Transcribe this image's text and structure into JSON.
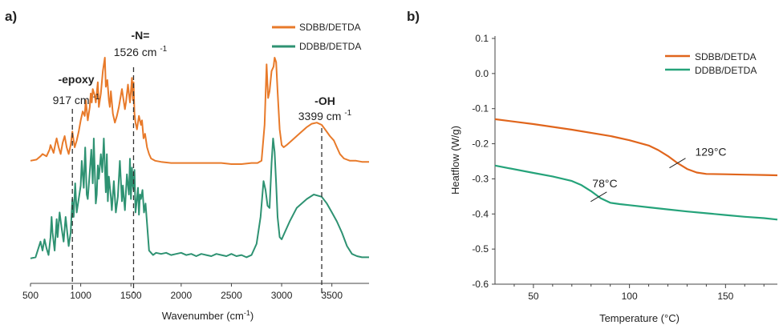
{
  "panels": {
    "a": "a)",
    "b": "b)"
  },
  "chart_data": [
    {
      "type": "line",
      "panel": "a)",
      "xlabel": "Wavenumber (cm⁻¹)",
      "ylabel": "",
      "xlim": [
        500,
        3870
      ],
      "x_ticks": [
        500,
        1000,
        1500,
        2000,
        2500,
        3000,
        3500
      ],
      "grid": false,
      "legend_position": "top-right",
      "series": [
        {
          "name": "SDBB/DETDA",
          "color": "#e87a2a",
          "x": [
            500,
            560,
            600,
            620,
            660,
            690,
            700,
            730,
            750,
            760,
            780,
            800,
            820,
            840,
            860,
            880,
            900,
            917,
            930,
            940,
            960,
            980,
            1000,
            1020,
            1040,
            1050,
            1070,
            1090,
            1100,
            1110,
            1120,
            1140,
            1150,
            1170,
            1180,
            1200,
            1220,
            1240,
            1250,
            1265,
            1280,
            1290,
            1300,
            1320,
            1340,
            1360,
            1380,
            1410,
            1420,
            1440,
            1450,
            1470,
            1480,
            1490,
            1500,
            1510,
            1520,
            1526,
            1535,
            1545,
            1560,
            1580,
            1600,
            1610,
            1625,
            1640,
            1660,
            1680,
            1700,
            1740,
            1800,
            1900,
            2000,
            2100,
            2200,
            2300,
            2400,
            2500,
            2600,
            2700,
            2760,
            2800,
            2830,
            2850,
            2865,
            2880,
            2900,
            2920,
            2930,
            2945,
            2960,
            2980,
            3000,
            3020,
            3050,
            3100,
            3150,
            3200,
            3250,
            3300,
            3350,
            3399,
            3440,
            3480,
            3520,
            3550,
            3580,
            3620,
            3680,
            3740,
            3800,
            3870
          ],
          "values": [
            8,
            9,
            12,
            14,
            12,
            18,
            22,
            15,
            24,
            28,
            20,
            14,
            24,
            30,
            20,
            14,
            22,
            34,
            26,
            20,
            26,
            34,
            44,
            52,
            48,
            62,
            44,
            56,
            68,
            60,
            72,
            66,
            60,
            78,
            56,
            68,
            88,
            100,
            74,
            80,
            62,
            56,
            70,
            50,
            42,
            48,
            56,
            72,
            66,
            54,
            60,
            76,
            68,
            60,
            70,
            82,
            62,
            78,
            50,
            42,
            36,
            48,
            40,
            44,
            28,
            32,
            20,
            14,
            10,
            8,
            7,
            6,
            6,
            6,
            6,
            6,
            6,
            5,
            5,
            6,
            6,
            8,
            40,
            94,
            64,
            70,
            88,
            92,
            100,
            96,
            70,
            36,
            22,
            20,
            22,
            26,
            30,
            34,
            38,
            41,
            42,
            40,
            35,
            30,
            26,
            20,
            14,
            10,
            8,
            8,
            7,
            7
          ]
        },
        {
          "name": "DDBB/DETDA",
          "color": "#2e9272",
          "x": [
            500,
            550,
            600,
            620,
            640,
            660,
            680,
            700,
            710,
            720,
            740,
            760,
            770,
            790,
            810,
            830,
            850,
            880,
            900,
            917,
            930,
            945,
            960,
            980,
            1000,
            1010,
            1030,
            1045,
            1060,
            1070,
            1090,
            1105,
            1120,
            1130,
            1150,
            1160,
            1170,
            1180,
            1200,
            1215,
            1230,
            1250,
            1260,
            1270,
            1280,
            1300,
            1310,
            1330,
            1350,
            1370,
            1390,
            1410,
            1420,
            1440,
            1460,
            1480,
            1490,
            1500,
            1510,
            1520,
            1526,
            1535,
            1545,
            1560,
            1570,
            1580,
            1590,
            1600,
            1615,
            1630,
            1645,
            1660,
            1680,
            1700,
            1720,
            1750,
            1800,
            1850,
            1900,
            1950,
            2000,
            2050,
            2100,
            2150,
            2200,
            2250,
            2300,
            2350,
            2400,
            2450,
            2500,
            2550,
            2600,
            2650,
            2700,
            2750,
            2790,
            2820,
            2840,
            2860,
            2880,
            2900,
            2915,
            2930,
            2945,
            2960,
            2980,
            3000,
            3030,
            3080,
            3150,
            3250,
            3320,
            3399,
            3450,
            3500,
            3550,
            3600,
            3650,
            3700,
            3750,
            3800,
            3870
          ],
          "values": [
            3,
            4,
            18,
            10,
            20,
            12,
            6,
            22,
            40,
            26,
            10,
            38,
            22,
            44,
            30,
            18,
            40,
            14,
            26,
            56,
            40,
            70,
            44,
            56,
            68,
            90,
            66,
            102,
            60,
            56,
            80,
            100,
            70,
            110,
            52,
            60,
            86,
            74,
            96,
            80,
            110,
            62,
            96,
            54,
            76,
            58,
            46,
            72,
            44,
            58,
            90,
            54,
            68,
            46,
            78,
            60,
            92,
            56,
            84,
            68,
            64,
            82,
            44,
            56,
            66,
            42,
            60,
            56,
            64,
            44,
            52,
            34,
            10,
            8,
            6,
            8,
            7,
            8,
            6,
            7,
            8,
            6,
            7,
            5,
            7,
            6,
            5,
            7,
            6,
            5,
            7,
            5,
            6,
            4,
            6,
            16,
            40,
            72,
            64,
            50,
            48,
            88,
            110,
            98,
            70,
            40,
            22,
            20,
            26,
            36,
            48,
            56,
            60,
            58,
            52,
            44,
            36,
            26,
            14,
            7,
            5,
            4,
            4
          ]
        }
      ],
      "annotations": [
        {
          "label": "-epoxy",
          "sublabel": "917 cm -1",
          "x": 917
        },
        {
          "label": "-N=",
          "sublabel": "1526 cm -1",
          "x": 1526
        },
        {
          "label": "-OH",
          "sublabel": "3399 cm -1",
          "x": 3399
        }
      ]
    },
    {
      "type": "line",
      "panel": "b)",
      "xlabel": "Temperature (°C)",
      "ylabel": "Heatflow (W/g)",
      "xlim": [
        30,
        177
      ],
      "ylim": [
        -0.6,
        0.1
      ],
      "x_ticks": [
        50,
        100,
        150
      ],
      "y_ticks": [
        0.1,
        0.0,
        -0.1,
        -0.2,
        -0.3,
        -0.4,
        -0.5,
        -0.6
      ],
      "y_tick_labels": [
        "0.1",
        "0.0",
        "-0.1",
        "-0.2",
        "-0.3",
        "-0.4",
        "-0.5",
        "-0.6"
      ],
      "grid": false,
      "legend_position": "top-right",
      "series": [
        {
          "name": "SDBB/DETDA",
          "color": "#e0651c",
          "x": [
            30,
            50,
            70,
            90,
            100,
            110,
            115,
            120,
            125,
            130,
            135,
            140,
            150,
            160,
            170,
            177
          ],
          "values": [
            -0.13,
            -0.144,
            -0.16,
            -0.178,
            -0.19,
            -0.205,
            -0.218,
            -0.235,
            -0.255,
            -0.272,
            -0.282,
            -0.286,
            -0.287,
            -0.288,
            -0.289,
            -0.29
          ]
        },
        {
          "name": "DDBB/DETDA",
          "color": "#25a37a",
          "x": [
            30,
            50,
            60,
            70,
            75,
            80,
            85,
            90,
            95,
            100,
            110,
            120,
            130,
            140,
            150,
            160,
            170,
            177
          ],
          "values": [
            -0.262,
            -0.283,
            -0.293,
            -0.306,
            -0.318,
            -0.335,
            -0.355,
            -0.368,
            -0.372,
            -0.375,
            -0.381,
            -0.387,
            -0.393,
            -0.398,
            -0.403,
            -0.408,
            -0.412,
            -0.416
          ]
        }
      ],
      "annotations": [
        {
          "label": "129°C",
          "x": 125,
          "y": -0.255
        },
        {
          "label": "78°C",
          "x": 84,
          "y": -0.351
        }
      ]
    }
  ]
}
